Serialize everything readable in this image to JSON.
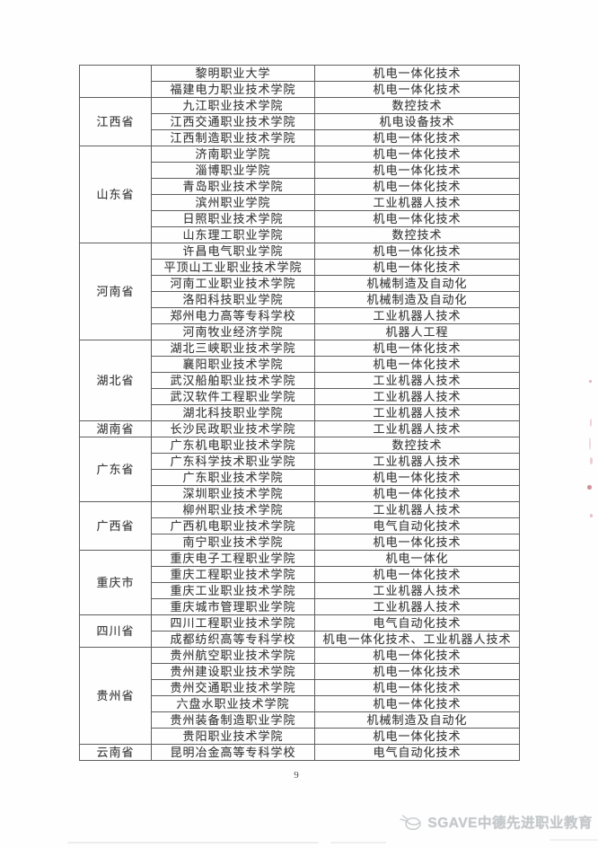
{
  "page": {
    "number": "9"
  },
  "watermark": {
    "logo_icon": "sgave-globe-logo-icon",
    "text": "SGAVE中德先进职业教育"
  },
  "table": {
    "columns": [
      "province",
      "school",
      "major"
    ],
    "groups": [
      {
        "province": "",
        "rows": [
          {
            "school": "黎明职业大学",
            "major": "机电一体化技术"
          },
          {
            "school": "福建电力职业技术学院",
            "major": "机电一体化技术"
          }
        ]
      },
      {
        "province": "江西省",
        "rows": [
          {
            "school": "九江职业技术学院",
            "major": "数控技术"
          },
          {
            "school": "江西交通职业技术学院",
            "major": "机电设备技术"
          },
          {
            "school": "江西制造职业技术学院",
            "major": "机电一体化技术"
          }
        ]
      },
      {
        "province": "山东省",
        "rows": [
          {
            "school": "济南职业学院",
            "major": "机电一体化技术"
          },
          {
            "school": "淄博职业学院",
            "major": "机电一体化技术"
          },
          {
            "school": "青岛职业技术学院",
            "major": "机电一体化技术"
          },
          {
            "school": "滨州职业学院",
            "major": "工业机器人技术"
          },
          {
            "school": "日照职业技术学院",
            "major": "机电一体化技术"
          },
          {
            "school": "山东理工职业学院",
            "major": "数控技术"
          }
        ]
      },
      {
        "province": "河南省",
        "rows": [
          {
            "school": "许昌电气职业学院",
            "major": "机电一体化技术"
          },
          {
            "school": "平顶山工业职业技术学院",
            "major": "机电一体化技术"
          },
          {
            "school": "河南工业职业技术学院",
            "major": "机械制造及自动化"
          },
          {
            "school": "洛阳科技职业学院",
            "major": "机械制造及自动化"
          },
          {
            "school": "郑州电力高等专科学校",
            "major": "工业机器人技术"
          },
          {
            "school": "河南牧业经济学院",
            "major": "机器人工程"
          }
        ]
      },
      {
        "province": "湖北省",
        "rows": [
          {
            "school": "湖北三峡职业技术学院",
            "major": "机电一体化技术"
          },
          {
            "school": "襄阳职业技术学院",
            "major": "机电一体化技术"
          },
          {
            "school": "武汉船舶职业技术学院",
            "major": "工业机器人技术"
          },
          {
            "school": "武汉软件工程职业学院",
            "major": "工业机器人技术"
          },
          {
            "school": "湖北科技职业学院",
            "major": "工业机器人技术"
          }
        ]
      },
      {
        "province": "湖南省",
        "rows": [
          {
            "school": "长沙民政职业技术学院",
            "major": "工业机器人技术"
          }
        ]
      },
      {
        "province": "广东省",
        "rows": [
          {
            "school": "广东机电职业技术学院",
            "major": "数控技术"
          },
          {
            "school": "广东科学技术职业学院",
            "major": "工业机器人技术"
          },
          {
            "school": "广东职业技术学院",
            "major": "机电一体化技术"
          },
          {
            "school": "深圳职业技术学院",
            "major": "机电一体化技术"
          }
        ]
      },
      {
        "province": "广西省",
        "rows": [
          {
            "school": "柳州职业技术学院",
            "major": "工业机器人技术"
          },
          {
            "school": "广西机电职业技术学院",
            "major": "电气自动化技术"
          },
          {
            "school": "南宁职业技术学院",
            "major": "机电一体化技术"
          }
        ]
      },
      {
        "province": "重庆市",
        "rows": [
          {
            "school": "重庆电子工程职业学院",
            "major": "机电一体化"
          },
          {
            "school": "重庆工程职业技术学院",
            "major": "机电一体化技术"
          },
          {
            "school": "重庆工业职业技术学院",
            "major": "工业机器人技术"
          },
          {
            "school": "重庆城市管理职业学院",
            "major": "工业机器人技术"
          }
        ]
      },
      {
        "province": "四川省",
        "rows": [
          {
            "school": "四川工程职业技术学院",
            "major": "电气自动化技术"
          },
          {
            "school": "成都纺织高等专科学校",
            "major": "机电一体化技术、工业机器人技术"
          }
        ]
      },
      {
        "province": "贵州省",
        "rows": [
          {
            "school": "贵州航空职业技术学院",
            "major": "机电一体化技术"
          },
          {
            "school": "贵州建设职业技术学院",
            "major": "机电一体化技术"
          },
          {
            "school": "贵州交通职业技术学院",
            "major": "机电一体化技术"
          },
          {
            "school": "六盘水职业技术学院",
            "major": "机电一体化技术"
          },
          {
            "school": "贵州装备制造职业学院",
            "major": "机械制造及自动化"
          },
          {
            "school": "贵阳职业技术学院",
            "major": "机电一体化技术"
          }
        ]
      },
      {
        "province": "云南省",
        "rows": [
          {
            "school": "昆明冶金高等专科学校",
            "major": "电气自动化技术"
          }
        ]
      }
    ]
  }
}
